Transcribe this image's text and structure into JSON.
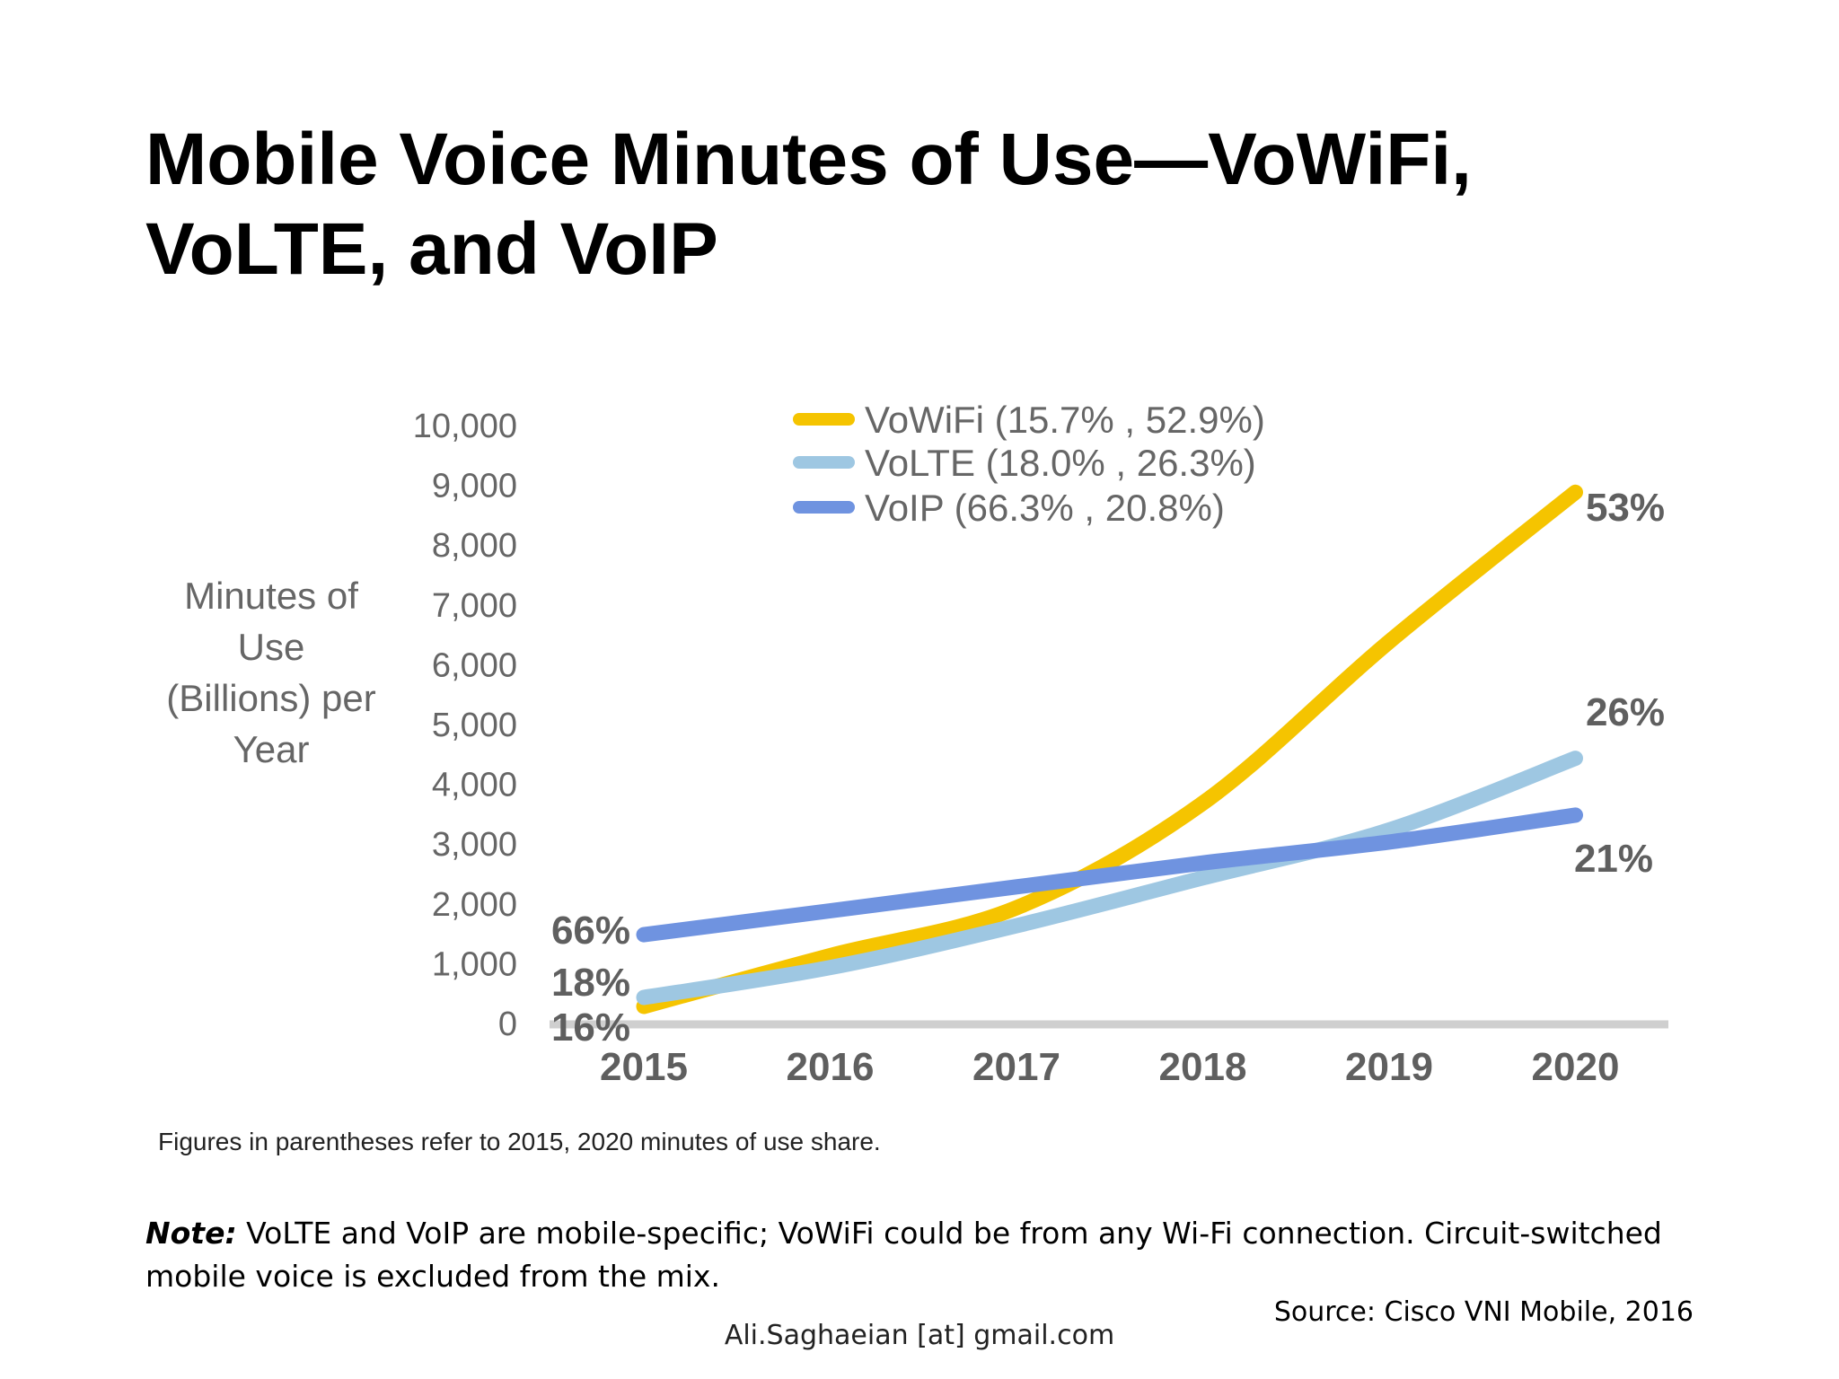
{
  "slide": {
    "title": "Mobile Voice Minutes of Use—VoWiFi, VoLTE, and VoIP",
    "footnote": "Figures in parentheses refer to 2015, 2020 minutes of use share.",
    "note_label": "Note:",
    "note_text": " VoLTE and VoIP are mobile-specific; VoWiFi could be from any Wi-Fi connection. Circuit-switched mobile voice is excluded from the mix.",
    "source": "Source: Cisco VNI Mobile, 2016",
    "author": "Ali.Saghaeian [at] gmail.com"
  },
  "chart_data": {
    "type": "line",
    "title": "",
    "xlabel": "",
    "ylabel": "Minutes of Use (Billions) per Year",
    "ylabel_lines": [
      "Minutes of",
      "Use",
      "(Billions) per",
      "Year"
    ],
    "x": [
      "2015",
      "2016",
      "2017",
      "2018",
      "2019",
      "2020"
    ],
    "ylim": [
      0,
      10000
    ],
    "yticks": [
      0,
      1000,
      2000,
      3000,
      4000,
      5000,
      6000,
      7000,
      8000,
      9000,
      10000
    ],
    "ytick_labels": [
      "0",
      "1,000",
      "2,000",
      "3,000",
      "4,000",
      "5,000",
      "6,000",
      "7,000",
      "8,000",
      "9,000",
      "10,000"
    ],
    "grid": false,
    "legend_position": "top-center",
    "series": [
      {
        "name": "VoWiFi (15.7% , 52.9%)",
        "color": "#f5c400",
        "values": [
          300,
          1150,
          1950,
          3700,
          6400,
          8900
        ],
        "start_label": "16%",
        "end_label": "53%"
      },
      {
        "name": "VoLTE (18.0% , 26.3%)",
        "color": "#9ec7e2",
        "values": [
          450,
          950,
          1650,
          2450,
          3250,
          4450
        ],
        "start_label": "18%",
        "end_label": "26%"
      },
      {
        "name": "VoIP (66.3% , 20.8%)",
        "color": "#6f93e0",
        "values": [
          1500,
          1900,
          2300,
          2700,
          3050,
          3500
        ],
        "start_label": "66%",
        "end_label": "21%"
      }
    ]
  }
}
